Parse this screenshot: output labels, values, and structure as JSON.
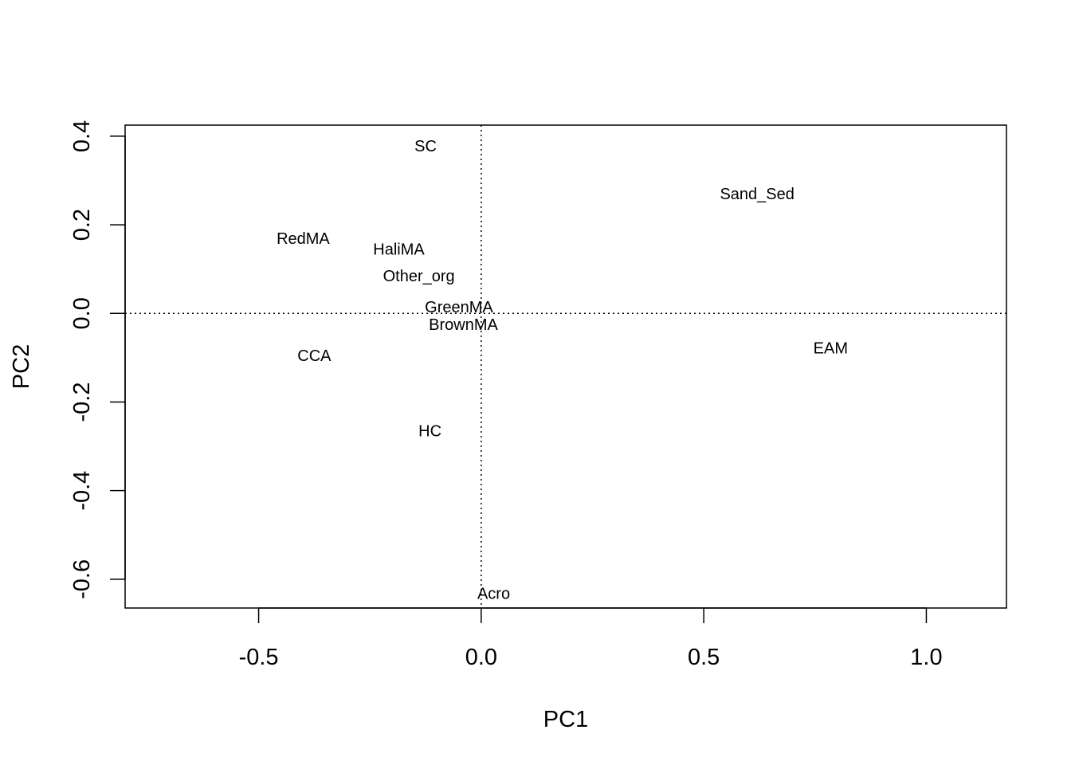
{
  "chart_data": {
    "type": "scatter",
    "title": "",
    "xlabel": "PC1",
    "ylabel": "PC2",
    "xlim": [
      -0.8,
      1.18
    ],
    "ylim": [
      -0.665,
      0.425
    ],
    "x_ticks": [
      -0.5,
      0.0,
      0.5,
      1.0
    ],
    "x_tick_labels": [
      "-0.5",
      "0.0",
      "0.5",
      "1.0"
    ],
    "y_ticks": [
      0.4,
      0.2,
      0.0,
      -0.2,
      -0.4,
      -0.6
    ],
    "y_tick_labels": [
      "0.4",
      "0.2",
      "0.0",
      "-0.2",
      "-0.4",
      "-0.6"
    ],
    "reference_lines": {
      "x": 0,
      "y": 0,
      "style": "dotted"
    },
    "grid": false,
    "legend": "none",
    "points": [
      {
        "label": "SC",
        "x": -0.125,
        "y": 0.378
      },
      {
        "label": "Sand_Sed",
        "x": 0.62,
        "y": 0.27
      },
      {
        "label": "RedMA",
        "x": -0.4,
        "y": 0.17
      },
      {
        "label": "HaliMA",
        "x": -0.185,
        "y": 0.145
      },
      {
        "label": "Other_org",
        "x": -0.14,
        "y": 0.085
      },
      {
        "label": "GreenMA",
        "x": -0.05,
        "y": 0.015
      },
      {
        "label": "BrownMA",
        "x": -0.04,
        "y": -0.025
      },
      {
        "label": "EAM",
        "x": 0.785,
        "y": -0.078
      },
      {
        "label": "CCA",
        "x": -0.375,
        "y": -0.095
      },
      {
        "label": "HC",
        "x": -0.115,
        "y": -0.265
      },
      {
        "label": "Acro",
        "x": 0.028,
        "y": -0.632
      }
    ]
  }
}
